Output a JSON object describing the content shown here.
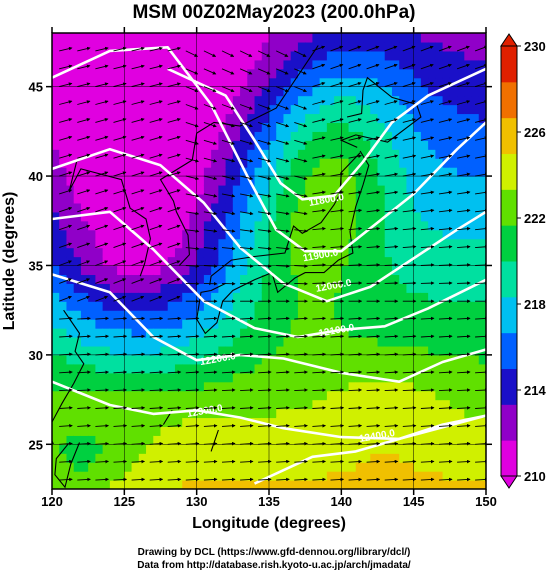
{
  "title": "MSM 00Z02May2023 (200.0hPa)",
  "credits": {
    "line1": "Drawing by DCL (https://www.gfd-dennou.org/library/dcl/)",
    "line2": "Data from http://database.rish.kyoto-u.ac.jp/arch/jmadata/"
  },
  "chart_data": {
    "type": "heatmap",
    "title": "MSM 00Z02May2023 (200.0hPa)",
    "xlabel": "Longitude (degrees)",
    "ylabel": "Latitude  (degrees)",
    "xlim": [
      120,
      150
    ],
    "ylim": [
      22.5,
      48
    ],
    "xticks": [
      120,
      125,
      130,
      135,
      140,
      145,
      150
    ],
    "yticks": [
      25,
      30,
      35,
      40,
      45
    ],
    "colorbar": {
      "min": 210,
      "max": 230,
      "ticks": [
        210,
        214,
        218,
        222,
        226,
        230
      ],
      "colors": [
        "#e000e0",
        "#9000c8",
        "#1a10c8",
        "#0060ff",
        "#00c0f0",
        "#00e0a0",
        "#00d040",
        "#60e000",
        "#d0f000",
        "#f0c000",
        "#f07000",
        "#e02000"
      ]
    },
    "contour_labels": [
      "11800.0",
      "11900.0",
      "12000.0",
      "12100.0",
      "12200.0",
      "12300.0",
      "12400.0"
    ],
    "overlays": [
      "wind vectors",
      "coastlines",
      "geopotential height contours"
    ],
    "grid": true
  }
}
